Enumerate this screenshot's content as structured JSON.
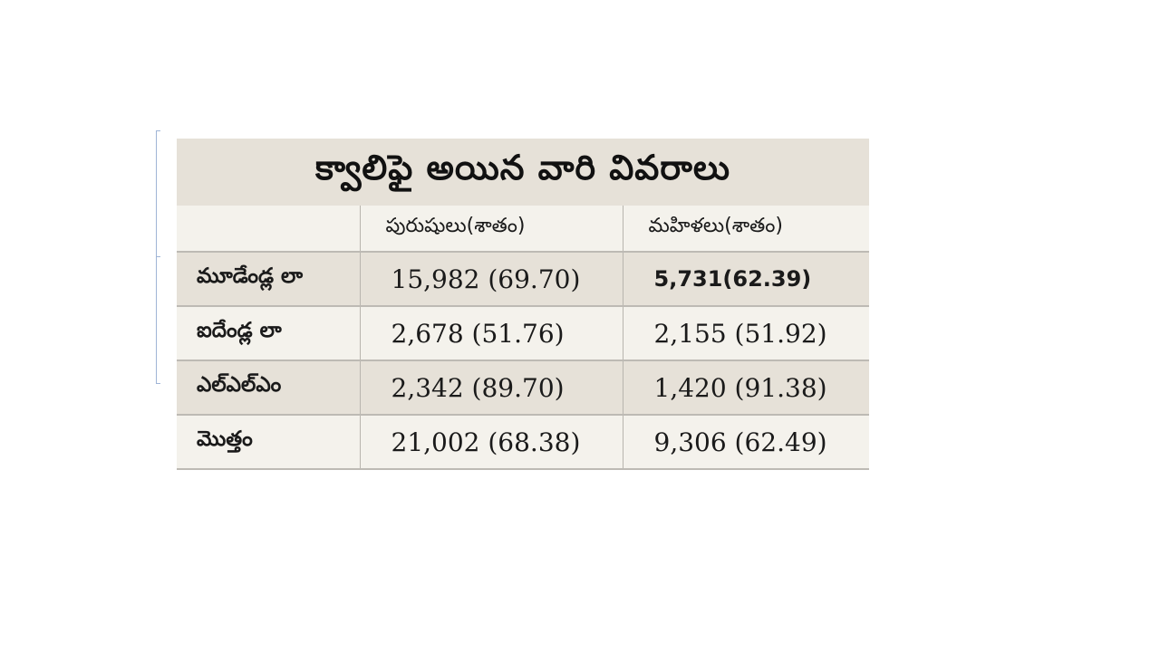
{
  "table": {
    "title": "క్వాలిఫై అయిన వారి వివరాలు",
    "headers": [
      "",
      "పురుషులు(శాతం)",
      "మహిళలు(శాతం)"
    ],
    "rows": [
      {
        "label": "మూడేండ్ల లా",
        "men": "15,982 (69.70)",
        "women": "5,731(62.39)"
      },
      {
        "label": "ఐదేండ్ల లా",
        "men": "2,678 (51.76)",
        "women": "2,155 (51.92)"
      },
      {
        "label": "ఎల్‌ఎల్‌ఎం",
        "men": "2,342 (89.70)",
        "women": "1,420 (91.38)"
      },
      {
        "label": "మొత్తం",
        "men": "21,002 (68.38)",
        "women": "9,306 (62.49)"
      }
    ]
  }
}
